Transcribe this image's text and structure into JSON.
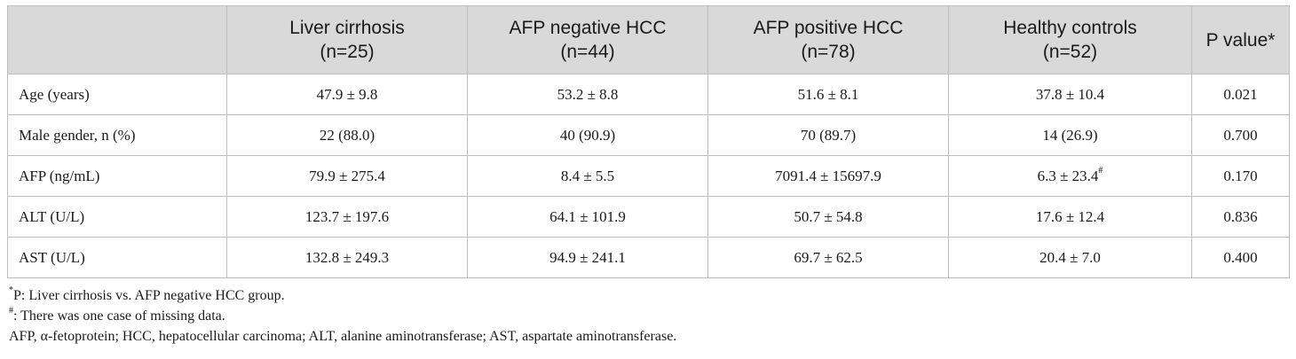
{
  "table": {
    "columns": [
      {
        "line1": "",
        "line2": ""
      },
      {
        "line1": "Liver cirrhosis",
        "line2": "(n=25)"
      },
      {
        "line1": "AFP negative HCC",
        "line2": "(n=44)"
      },
      {
        "line1": "AFP positive HCC",
        "line2": "(n=78)"
      },
      {
        "line1": "Healthy controls",
        "line2": "(n=52)"
      },
      {
        "line1": "P value*",
        "line2": ""
      }
    ],
    "rows": [
      {
        "label": "Age (years)",
        "cirrhosis": "47.9 ± 9.8",
        "afp_neg": "53.2 ± 8.8",
        "afp_pos": "51.6 ± 8.1",
        "healthy": "37.8 ± 10.4",
        "healthy_sup": "",
        "p": "0.021"
      },
      {
        "label": "Male gender, n (%)",
        "cirrhosis": "22 (88.0)",
        "afp_neg": "40 (90.9)",
        "afp_pos": "70 (89.7)",
        "healthy": "14 (26.9)",
        "healthy_sup": "",
        "p": "0.700"
      },
      {
        "label": "AFP (ng/mL)",
        "cirrhosis": "79.9 ± 275.4",
        "afp_neg": "8.4 ± 5.5",
        "afp_pos": "7091.4 ± 15697.9",
        "healthy": "6.3 ± 23.4",
        "healthy_sup": "#",
        "p": "0.170"
      },
      {
        "label": "ALT (U/L)",
        "cirrhosis": "123.7 ± 197.6",
        "afp_neg": "64.1 ± 101.9",
        "afp_pos": "50.7 ± 54.8",
        "healthy": "17.6 ± 12.4",
        "healthy_sup": "",
        "p": "0.836"
      },
      {
        "label": "AST (U/L)",
        "cirrhosis": "132.8 ± 249.3",
        "afp_neg": "94.9 ± 241.1",
        "afp_pos": "69.7 ± 62.5",
        "healthy": "20.4 ± 7.0",
        "healthy_sup": "",
        "p": "0.400"
      }
    ]
  },
  "footnotes": {
    "note1_mark": "*",
    "note1_text": "P: Liver cirrhosis vs. AFP negative HCC group.",
    "note2_mark": "#",
    "note2_text": ": There was one case of missing data.",
    "note3_text": "AFP, α-fetoprotein; HCC, hepatocellular carcinoma; ALT, alanine aminotransferase; AST, aspartate aminotransferase."
  }
}
